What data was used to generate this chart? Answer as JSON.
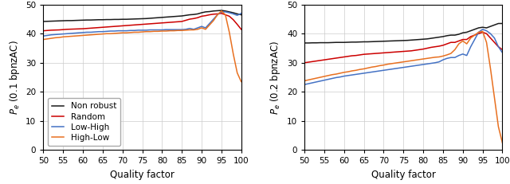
{
  "left": {
    "ylabel": "$P_e$ (0.1 bpnzAC)",
    "xlabel": "Quality factor",
    "xlim": [
      50,
      100
    ],
    "ylim": [
      0,
      50
    ],
    "xticks": [
      50,
      55,
      60,
      65,
      70,
      75,
      80,
      85,
      90,
      95,
      100
    ],
    "yticks": [
      0,
      10,
      20,
      30,
      40,
      50
    ],
    "non_robust": {
      "x": [
        50,
        51,
        52,
        53,
        54,
        55,
        56,
        57,
        58,
        59,
        60,
        61,
        62,
        63,
        64,
        65,
        66,
        67,
        68,
        69,
        70,
        71,
        72,
        73,
        74,
        75,
        76,
        77,
        78,
        79,
        80,
        81,
        82,
        83,
        84,
        85,
        86,
        87,
        88,
        89,
        90,
        91,
        92,
        93,
        94,
        95,
        96,
        97,
        98,
        99,
        100
      ],
      "y": [
        44.2,
        44.25,
        44.3,
        44.35,
        44.4,
        44.45,
        44.5,
        44.5,
        44.55,
        44.6,
        44.65,
        44.7,
        44.7,
        44.75,
        44.8,
        44.8,
        44.85,
        44.85,
        44.9,
        44.9,
        44.95,
        44.95,
        45.0,
        45.05,
        45.1,
        45.15,
        45.2,
        45.3,
        45.4,
        45.5,
        45.6,
        45.7,
        45.8,
        45.9,
        46.0,
        46.1,
        46.3,
        46.5,
        46.6,
        46.8,
        47.2,
        47.5,
        47.6,
        47.8,
        47.9,
        48.0,
        47.8,
        47.5,
        47.2,
        46.8,
        46.5
      ]
    },
    "random": {
      "x": [
        50,
        51,
        52,
        53,
        54,
        55,
        56,
        57,
        58,
        59,
        60,
        61,
        62,
        63,
        64,
        65,
        66,
        67,
        68,
        69,
        70,
        71,
        72,
        73,
        74,
        75,
        76,
        77,
        78,
        79,
        80,
        81,
        82,
        83,
        84,
        85,
        86,
        87,
        88,
        89,
        90,
        91,
        92,
        93,
        94,
        95,
        96,
        97,
        98,
        99,
        100
      ],
      "y": [
        41.0,
        41.1,
        41.2,
        41.25,
        41.3,
        41.4,
        41.5,
        41.55,
        41.6,
        41.65,
        41.7,
        41.8,
        41.9,
        42.0,
        42.1,
        42.2,
        42.3,
        42.4,
        42.5,
        42.6,
        42.7,
        42.8,
        42.9,
        43.0,
        43.1,
        43.2,
        43.3,
        43.4,
        43.5,
        43.6,
        43.7,
        43.8,
        43.9,
        44.0,
        44.1,
        44.2,
        44.6,
        45.0,
        45.2,
        45.5,
        46.0,
        46.2,
        46.5,
        46.7,
        46.8,
        47.0,
        46.5,
        46.0,
        44.8,
        43.2,
        41.5
      ]
    },
    "low_high": {
      "x": [
        50,
        51,
        52,
        53,
        54,
        55,
        56,
        57,
        58,
        59,
        60,
        61,
        62,
        63,
        64,
        65,
        66,
        67,
        68,
        69,
        70,
        71,
        72,
        73,
        74,
        75,
        76,
        77,
        78,
        79,
        80,
        81,
        82,
        83,
        84,
        85,
        86,
        87,
        88,
        89,
        90,
        91,
        92,
        93,
        94,
        95,
        96,
        97,
        98,
        99,
        100
      ],
      "y": [
        39.2,
        39.4,
        39.6,
        39.7,
        39.8,
        39.9,
        40.0,
        40.1,
        40.2,
        40.3,
        40.4,
        40.5,
        40.5,
        40.6,
        40.7,
        40.7,
        40.8,
        40.9,
        40.9,
        41.0,
        41.0,
        41.0,
        41.1,
        41.1,
        41.2,
        41.2,
        41.2,
        41.3,
        41.3,
        41.3,
        41.3,
        41.4,
        41.4,
        41.4,
        41.4,
        41.4,
        41.5,
        41.8,
        41.5,
        42.0,
        42.5,
        42.0,
        43.5,
        45.0,
        46.5,
        47.5,
        47.5,
        47.2,
        46.8,
        46.3,
        47.0
      ]
    },
    "high_low": {
      "x": [
        50,
        51,
        52,
        53,
        54,
        55,
        56,
        57,
        58,
        59,
        60,
        61,
        62,
        63,
        64,
        65,
        66,
        67,
        68,
        69,
        70,
        71,
        72,
        73,
        74,
        75,
        76,
        77,
        78,
        79,
        80,
        81,
        82,
        83,
        84,
        85,
        86,
        87,
        88,
        89,
        90,
        91,
        92,
        93,
        94,
        95,
        96,
        97,
        98,
        99,
        100
      ],
      "y": [
        38.0,
        38.2,
        38.4,
        38.6,
        38.7,
        38.9,
        39.0,
        39.1,
        39.2,
        39.3,
        39.4,
        39.5,
        39.6,
        39.7,
        39.8,
        39.9,
        40.0,
        40.0,
        40.1,
        40.2,
        40.3,
        40.3,
        40.4,
        40.5,
        40.5,
        40.6,
        40.7,
        40.7,
        40.8,
        40.8,
        40.9,
        40.9,
        41.0,
        41.0,
        41.1,
        41.1,
        41.2,
        41.3,
        41.3,
        41.5,
        42.0,
        41.5,
        43.0,
        44.5,
        46.5,
        47.8,
        46.5,
        40.5,
        33.0,
        26.5,
        23.5
      ]
    }
  },
  "right": {
    "ylabel": "$P_e$ (0.2 bpnzAC)",
    "xlabel": "Quality factor",
    "xlim": [
      50,
      100
    ],
    "ylim": [
      0,
      50
    ],
    "xticks": [
      50,
      55,
      60,
      65,
      70,
      75,
      80,
      85,
      90,
      95,
      100
    ],
    "yticks": [
      0,
      10,
      20,
      30,
      40,
      50
    ],
    "non_robust": {
      "x": [
        50,
        51,
        52,
        53,
        54,
        55,
        56,
        57,
        58,
        59,
        60,
        61,
        62,
        63,
        64,
        65,
        66,
        67,
        68,
        69,
        70,
        71,
        72,
        73,
        74,
        75,
        76,
        77,
        78,
        79,
        80,
        81,
        82,
        83,
        84,
        85,
        86,
        87,
        88,
        89,
        90,
        91,
        92,
        93,
        94,
        95,
        96,
        97,
        98,
        99,
        100
      ],
      "y": [
        36.8,
        36.8,
        36.85,
        36.85,
        36.9,
        36.9,
        36.9,
        36.95,
        37.0,
        37.0,
        37.0,
        37.05,
        37.1,
        37.1,
        37.15,
        37.2,
        37.2,
        37.25,
        37.3,
        37.35,
        37.4,
        37.45,
        37.5,
        37.55,
        37.6,
        37.65,
        37.7,
        37.8,
        37.9,
        38.0,
        38.1,
        38.2,
        38.4,
        38.6,
        38.8,
        39.0,
        39.3,
        39.5,
        39.5,
        39.8,
        40.3,
        40.5,
        41.0,
        41.5,
        42.0,
        42.2,
        42.0,
        42.5,
        43.0,
        43.5,
        43.5
      ]
    },
    "random": {
      "x": [
        50,
        51,
        52,
        53,
        54,
        55,
        56,
        57,
        58,
        59,
        60,
        61,
        62,
        63,
        64,
        65,
        66,
        67,
        68,
        69,
        70,
        71,
        72,
        73,
        74,
        75,
        76,
        77,
        78,
        79,
        80,
        81,
        82,
        83,
        84,
        85,
        86,
        87,
        88,
        89,
        90,
        91,
        92,
        93,
        94,
        95,
        96,
        97,
        98,
        99,
        100
      ],
      "y": [
        30.0,
        30.2,
        30.4,
        30.6,
        30.8,
        31.0,
        31.2,
        31.4,
        31.6,
        31.8,
        32.0,
        32.2,
        32.4,
        32.5,
        32.7,
        32.9,
        33.0,
        33.1,
        33.2,
        33.3,
        33.4,
        33.5,
        33.6,
        33.7,
        33.8,
        33.9,
        34.0,
        34.1,
        34.3,
        34.5,
        34.7,
        35.0,
        35.3,
        35.5,
        35.7,
        36.0,
        36.5,
        37.0,
        37.0,
        37.5,
        38.0,
        38.0,
        39.0,
        39.5,
        40.0,
        40.5,
        40.0,
        38.5,
        37.0,
        35.5,
        34.5
      ]
    },
    "low_high": {
      "x": [
        50,
        51,
        52,
        53,
        54,
        55,
        56,
        57,
        58,
        59,
        60,
        61,
        62,
        63,
        64,
        65,
        66,
        67,
        68,
        69,
        70,
        71,
        72,
        73,
        74,
        75,
        76,
        77,
        78,
        79,
        80,
        81,
        82,
        83,
        84,
        85,
        86,
        87,
        88,
        89,
        90,
        91,
        92,
        93,
        94,
        95,
        96,
        97,
        98,
        99,
        100
      ],
      "y": [
        22.5,
        22.8,
        23.1,
        23.4,
        23.7,
        24.0,
        24.3,
        24.6,
        24.9,
        25.1,
        25.4,
        25.6,
        25.8,
        26.0,
        26.2,
        26.4,
        26.6,
        26.8,
        27.0,
        27.2,
        27.4,
        27.6,
        27.8,
        28.0,
        28.2,
        28.4,
        28.6,
        28.8,
        29.0,
        29.2,
        29.4,
        29.6,
        29.8,
        30.0,
        30.3,
        31.0,
        31.5,
        31.8,
        31.8,
        32.5,
        33.0,
        32.5,
        35.5,
        38.0,
        40.5,
        41.5,
        41.0,
        40.0,
        38.5,
        35.5,
        33.5
      ]
    },
    "high_low": {
      "x": [
        50,
        51,
        52,
        53,
        54,
        55,
        56,
        57,
        58,
        59,
        60,
        61,
        62,
        63,
        64,
        65,
        66,
        67,
        68,
        69,
        70,
        71,
        72,
        73,
        74,
        75,
        76,
        77,
        78,
        79,
        80,
        81,
        82,
        83,
        84,
        85,
        86,
        87,
        88,
        89,
        90,
        91,
        92,
        93,
        94,
        95,
        96,
        97,
        98,
        99,
        100
      ],
      "y": [
        23.8,
        24.1,
        24.4,
        24.7,
        25.0,
        25.3,
        25.6,
        25.9,
        26.1,
        26.4,
        26.7,
        26.9,
        27.2,
        27.4,
        27.7,
        27.9,
        28.2,
        28.5,
        28.7,
        29.0,
        29.2,
        29.5,
        29.7,
        29.9,
        30.1,
        30.3,
        30.5,
        30.7,
        30.9,
        31.1,
        31.3,
        31.5,
        31.7,
        31.9,
        32.0,
        32.3,
        32.7,
        33.2,
        34.5,
        36.5,
        37.5,
        36.5,
        38.5,
        39.5,
        40.5,
        40.8,
        37.0,
        28.0,
        18.0,
        8.0,
        2.5
      ]
    }
  },
  "colors": {
    "non_robust": "#1a1a1a",
    "random": "#cc0000",
    "low_high": "#4472c4",
    "high_low": "#e87020"
  },
  "legend": {
    "non_robust": "Non robust",
    "random": "Random",
    "low_high": "Low-High",
    "high_low": "High-Low"
  },
  "linewidth": 1.1
}
